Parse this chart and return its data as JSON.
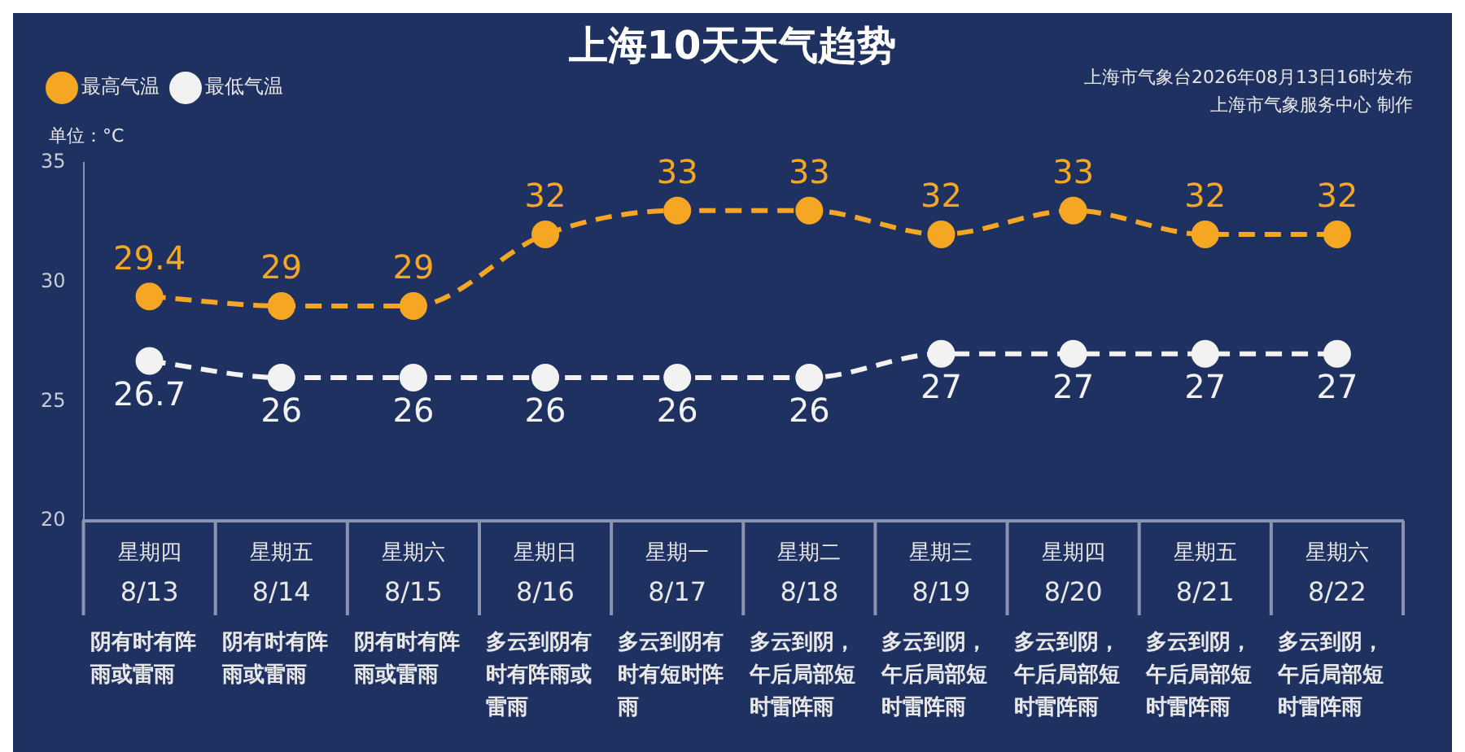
{
  "chart_data": {
    "type": "line",
    "title": "上海10天天气趋势",
    "ylabel": "单位：°C",
    "annotations": [
      "上海市气象台2026年08月13日16时发布",
      "上海市气象服务中心 制作"
    ],
    "categories": [
      "星期四\n8/13\n阴有时有阵雨或雷雨",
      "星期五\n8/14\n阴有时有阵雨或雷雨",
      "星期六\n8/15\n阴有时有阵雨或雷雨",
      "星期日\n8/16\n多云到阴有时有阵雨或雷雨",
      "星期一\n8/17\n多云到阴有时有短时阵雨",
      "星期二\n8/18\n多云到阴，午后局部短时雷阵雨",
      "星期三\n8/19\n多云到阴，午后局部短时雷阵雨",
      "星期四\n8/20\n多云到阴，午后局部短时雷阵雨",
      "星期五\n8/21\n多云到阴，午后局部短时雷阵雨",
      "星期六\n8/22\n多云到阴，午后局部短时雷阵雨"
    ],
    "series": [
      {
        "name": "最高气温",
        "color": "#f5a623",
        "values": [
          29.4,
          29,
          29,
          32,
          33,
          33,
          32,
          33,
          32,
          32
        ]
      },
      {
        "name": "最低气温",
        "color": "#f2f2f2",
        "values": [
          26.7,
          26,
          26,
          26,
          26,
          26,
          27,
          27,
          27,
          27
        ]
      }
    ],
    "ylim": [
      20,
      35
    ],
    "yticks": [
      20,
      25,
      30,
      35
    ],
    "grid": false,
    "legend": "top left",
    "marker": "circle",
    "line_style": "dashed",
    "data_labels": true
  }
}
